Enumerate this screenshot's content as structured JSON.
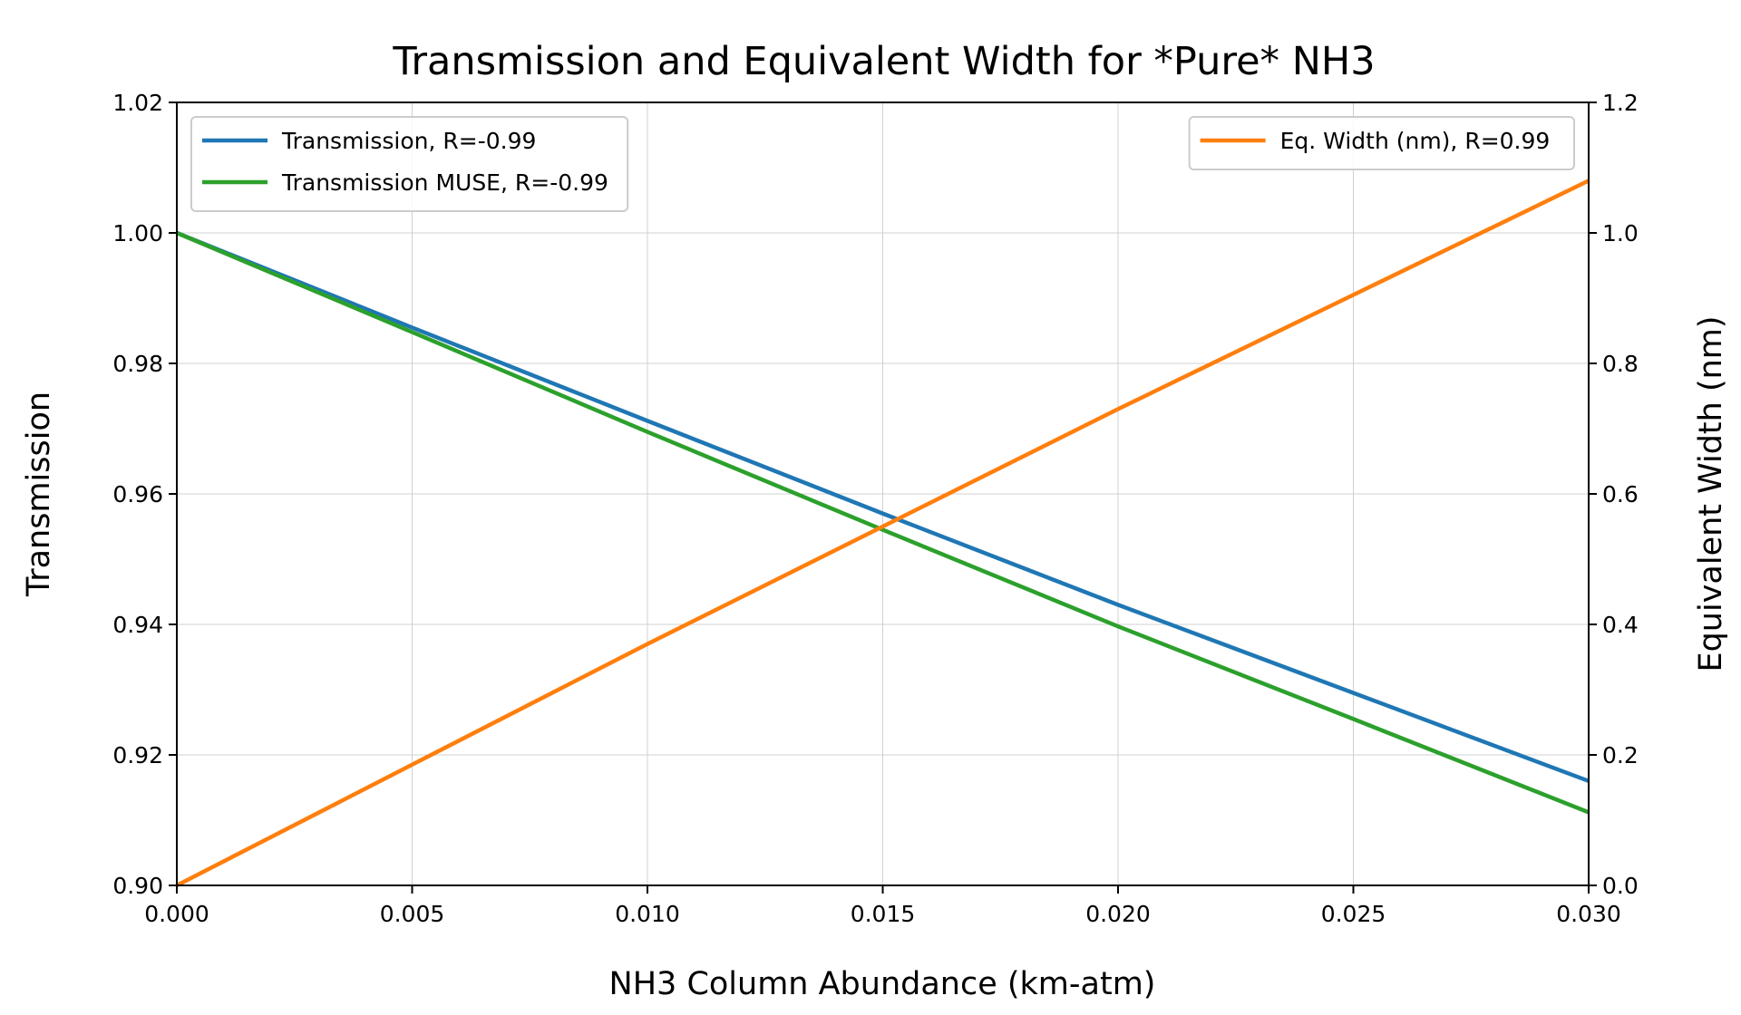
{
  "chart_data": {
    "type": "line",
    "title": "Transmission and Equivalent Width for *Pure* NH3",
    "xlabel": "NH3 Column Abundance (km-atm)",
    "ylabel_left": "Transmission",
    "ylabel_right": "Equivalent Width (nm)",
    "xlim": [
      0.0,
      0.03
    ],
    "ylim_left": [
      0.9,
      1.02
    ],
    "ylim_right": [
      0.0,
      1.2
    ],
    "xticks": [
      "0.000",
      "0.005",
      "0.010",
      "0.015",
      "0.020",
      "0.025",
      "0.030"
    ],
    "yticks_left": [
      "0.90",
      "0.92",
      "0.94",
      "0.96",
      "0.98",
      "1.00",
      "1.02"
    ],
    "yticks_right": [
      "0.0",
      "0.2",
      "0.4",
      "0.6",
      "0.8",
      "1.0",
      "1.2"
    ],
    "grid": true,
    "series": [
      {
        "name": "Transmission, R=-0.99",
        "axis": "left",
        "color": "#1f77b4",
        "x": [
          0.0,
          0.005,
          0.01,
          0.015,
          0.02,
          0.025,
          0.03
        ],
        "y": [
          1.0,
          0.9855,
          0.9712,
          0.957,
          0.943,
          0.9295,
          0.916
        ]
      },
      {
        "name": "Transmission MUSE, R=-0.99",
        "axis": "left",
        "color": "#2ca02c",
        "x": [
          0.0,
          0.005,
          0.01,
          0.015,
          0.02,
          0.025,
          0.03
        ],
        "y": [
          1.0,
          0.9848,
          0.9695,
          0.9545,
          0.9397,
          0.9255,
          0.9112
        ]
      },
      {
        "name": "Eq. Width (nm), R=0.99",
        "axis": "right",
        "color": "#ff7f0e",
        "x": [
          0.0,
          0.005,
          0.01,
          0.015,
          0.02,
          0.025,
          0.03
        ],
        "y": [
          0.0,
          0.185,
          0.37,
          0.55,
          0.73,
          0.905,
          1.08
        ]
      }
    ],
    "legends": [
      {
        "placement": "upper-left",
        "entries": [
          "Transmission, R=-0.99",
          "Transmission MUSE, R=-0.99"
        ]
      },
      {
        "placement": "upper-right",
        "entries": [
          "Eq. Width (nm), R=0.99"
        ]
      }
    ]
  }
}
